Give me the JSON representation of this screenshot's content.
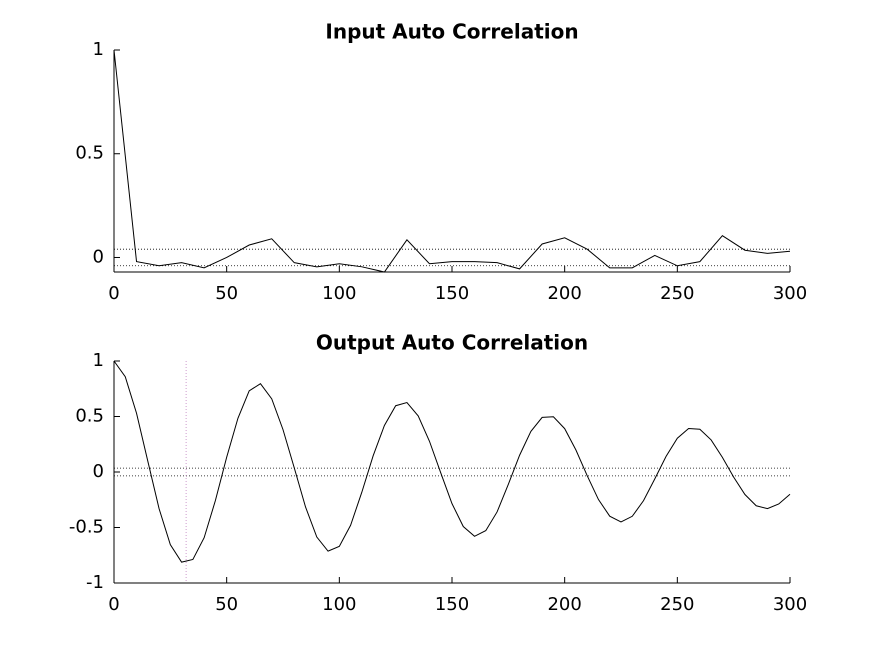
{
  "chart_data": [
    {
      "type": "line",
      "title": "Input Auto Correlation",
      "color": "#000000",
      "x": [
        0,
        10,
        20,
        30,
        40,
        50,
        60,
        70,
        80,
        90,
        100,
        110,
        120,
        130,
        140,
        150,
        160,
        170,
        180,
        190,
        200,
        210,
        220,
        230,
        240,
        250,
        260,
        270,
        280,
        290,
        300
      ],
      "values": [
        1,
        -0.02,
        -0.04,
        -0.025,
        -0.05,
        0,
        0.06,
        0.09,
        -0.025,
        -0.045,
        -0.03,
        -0.045,
        -0.07,
        0.085,
        -0.03,
        -0.02,
        -0.02,
        -0.025,
        -0.055,
        0.065,
        0.095,
        0.04,
        -0.05,
        -0.05,
        0.01,
        -0.04,
        -0.02,
        0.105,
        0.035,
        0.02,
        0.03
      ],
      "xlim": [
        0,
        300
      ],
      "ylim": [
        -0.07,
        1
      ],
      "xticks": [
        0,
        50,
        100,
        150,
        200,
        250,
        300
      ],
      "yticks": [
        0,
        0.5,
        1
      ],
      "hlines": [
        0.04,
        -0.04
      ]
    },
    {
      "type": "line",
      "title": "Output Auto Correlation",
      "color": "#000000",
      "x": [
        0,
        5,
        10,
        15,
        20,
        25,
        30,
        35,
        40,
        45,
        50,
        55,
        60,
        65,
        70,
        75,
        80,
        85,
        90,
        95,
        100,
        105,
        110,
        115,
        120,
        125,
        130,
        135,
        140,
        145,
        150,
        155,
        160,
        165,
        170,
        175,
        180,
        185,
        190,
        195,
        200,
        205,
        210,
        215,
        220,
        225,
        230,
        235,
        240,
        245,
        250,
        255,
        260,
        265,
        270,
        275,
        280,
        285,
        290,
        295,
        300
      ],
      "values": [
        1,
        0.858,
        0.529,
        0.098,
        -0.33,
        -0.655,
        -0.812,
        -0.788,
        -0.592,
        -0.257,
        0.133,
        0.484,
        0.731,
        0.796,
        0.659,
        0.382,
        0.037,
        -0.315,
        -0.586,
        -0.713,
        -0.67,
        -0.48,
        -0.181,
        0.146,
        0.419,
        0.597,
        0.626,
        0.505,
        0.277,
        -0.007,
        -0.285,
        -0.491,
        -0.579,
        -0.528,
        -0.36,
        -0.111,
        0.151,
        0.366,
        0.492,
        0.498,
        0.391,
        0.198,
        -0.033,
        -0.248,
        -0.398,
        -0.45,
        -0.399,
        -0.258,
        -0.062,
        0.141,
        0.304,
        0.392,
        0.385,
        0.289,
        0.132,
        -0.046,
        -0.203,
        -0.304,
        -0.33,
        -0.288,
        -0.2
      ],
      "xlim": [
        0,
        300
      ],
      "ylim": [
        -1,
        1
      ],
      "xticks": [
        0,
        50,
        100,
        150,
        200,
        250,
        300
      ],
      "yticks": [
        -1,
        -0.5,
        0,
        0.5,
        1
      ],
      "hlines": [
        0.035,
        -0.035
      ],
      "vlines": [
        32
      ]
    }
  ]
}
